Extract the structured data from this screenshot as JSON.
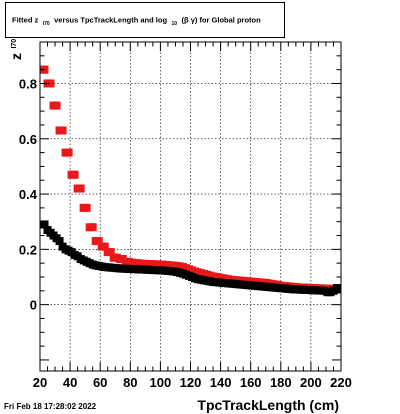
{
  "chart_data": {
    "type": "scatter",
    "title_parts": {
      "pre": "Fitted  z",
      "sub1": "I70",
      "mid": " versus TpcTrackLength and log",
      "sub2": "10",
      "post": "(β  γ) for Global proton"
    },
    "xlabel": "TpcTrackLength (cm)",
    "ylabel": "z",
    "ylabel_sub": "I70",
    "xlim": [
      20,
      220
    ],
    "ylim": [
      -0.24,
      0.95
    ],
    "xticks": [
      20,
      40,
      60,
      80,
      100,
      120,
      140,
      160,
      180,
      200,
      220
    ],
    "yticks": [
      0,
      0.2,
      0.4,
      0.6,
      0.8
    ],
    "ytick_labels": [
      "0",
      "0.2",
      "0.4",
      "0.6",
      "0.8"
    ],
    "grid": true,
    "legend": "none",
    "series": [
      {
        "color": "#e8191a",
        "x": [
          21,
          23,
          25,
          27,
          29,
          31,
          33,
          35,
          37,
          39,
          41,
          43,
          45,
          47,
          49,
          51,
          53,
          55,
          57,
          59,
          61,
          63,
          65,
          67,
          69,
          71,
          73,
          75,
          77,
          79,
          81,
          83,
          85,
          87,
          89,
          91,
          93,
          95,
          97,
          99,
          101,
          103,
          105,
          107,
          109,
          111,
          113,
          115,
          117,
          119,
          121,
          123,
          125,
          127,
          129,
          131,
          133,
          135,
          137,
          139,
          141,
          143,
          145,
          147,
          149,
          151,
          153,
          155,
          157,
          159,
          161,
          163,
          165,
          167,
          169,
          171,
          173,
          175,
          177,
          179,
          181,
          183,
          185,
          187,
          189,
          191,
          193,
          195,
          197,
          199,
          201,
          203,
          205,
          207,
          209,
          211,
          213,
          215,
          217,
          219
        ],
        "y": [
          0.85,
          0.85,
          0.8,
          0.8,
          0.72,
          0.72,
          0.63,
          0.63,
          0.55,
          0.55,
          0.47,
          0.47,
          0.42,
          0.42,
          0.35,
          0.35,
          0.28,
          0.28,
          0.23,
          0.23,
          0.21,
          0.21,
          0.19,
          0.19,
          0.17,
          0.17,
          0.165,
          0.165,
          0.155,
          0.155,
          0.152,
          0.15,
          0.15,
          0.148,
          0.148,
          0.147,
          0.147,
          0.146,
          0.146,
          0.145,
          0.145,
          0.144,
          0.143,
          0.142,
          0.141,
          0.14,
          0.138,
          0.136,
          0.132,
          0.128,
          0.124,
          0.12,
          0.117,
          0.114,
          0.111,
          0.108,
          0.105,
          0.102,
          0.1,
          0.098,
          0.096,
          0.094,
          0.092,
          0.09,
          0.089,
          0.088,
          0.087,
          0.086,
          0.085,
          0.084,
          0.083,
          0.082,
          0.081,
          0.08,
          0.079,
          0.078,
          0.076,
          0.074,
          0.072,
          0.07,
          0.068,
          0.067,
          0.066,
          0.065,
          0.064,
          0.063,
          0.062,
          0.062,
          0.061,
          0.061,
          0.06,
          0.06,
          0.059,
          0.059,
          0.058,
          0.058,
          0.057,
          0.057,
          0.056,
          0.056
        ]
      },
      {
        "color": "#000000",
        "x": [
          21,
          23,
          25,
          27,
          29,
          31,
          33,
          35,
          37,
          39,
          41,
          43,
          45,
          47,
          49,
          51,
          53,
          55,
          57,
          59,
          61,
          63,
          65,
          67,
          69,
          71,
          73,
          75,
          77,
          79,
          81,
          83,
          85,
          87,
          89,
          91,
          93,
          95,
          97,
          99,
          101,
          103,
          105,
          107,
          109,
          111,
          113,
          115,
          117,
          119,
          121,
          123,
          125,
          127,
          129,
          131,
          133,
          135,
          137,
          139,
          141,
          143,
          145,
          147,
          149,
          151,
          153,
          155,
          157,
          159,
          161,
          163,
          165,
          167,
          169,
          171,
          173,
          175,
          177,
          179,
          181,
          183,
          185,
          187,
          189,
          191,
          193,
          195,
          197,
          199,
          201,
          203,
          205,
          207,
          209,
          211,
          213,
          215,
          217,
          219
        ],
        "y": [
          0.29,
          0.29,
          0.27,
          0.26,
          0.25,
          0.24,
          0.23,
          0.21,
          0.2,
          0.195,
          0.19,
          0.18,
          0.175,
          0.165,
          0.16,
          0.155,
          0.15,
          0.145,
          0.142,
          0.14,
          0.138,
          0.136,
          0.135,
          0.134,
          0.133,
          0.132,
          0.131,
          0.13,
          0.13,
          0.129,
          0.129,
          0.128,
          0.128,
          0.127,
          0.127,
          0.126,
          0.126,
          0.125,
          0.125,
          0.124,
          0.124,
          0.123,
          0.122,
          0.121,
          0.12,
          0.118,
          0.115,
          0.112,
          0.108,
          0.104,
          0.1,
          0.095,
          0.092,
          0.09,
          0.088,
          0.086,
          0.084,
          0.082,
          0.081,
          0.08,
          0.079,
          0.078,
          0.077,
          0.076,
          0.075,
          0.074,
          0.073,
          0.072,
          0.071,
          0.07,
          0.069,
          0.068,
          0.067,
          0.066,
          0.065,
          0.064,
          0.063,
          0.062,
          0.061,
          0.06,
          0.059,
          0.058,
          0.057,
          0.056,
          0.055,
          0.055,
          0.054,
          0.054,
          0.053,
          0.053,
          0.052,
          0.052,
          0.051,
          0.051,
          0.05,
          0.045,
          0.045,
          0.05,
          0.055,
          0.06
        ]
      }
    ]
  },
  "footer": {
    "timestamp": "Fri Feb 18 17:28:02 2022"
  }
}
